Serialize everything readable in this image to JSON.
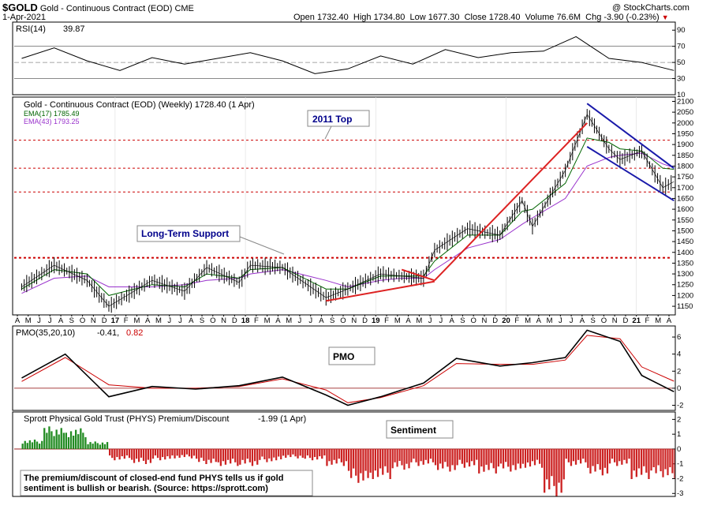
{
  "header": {
    "symbol": "$GOLD",
    "name": "Gold - Continuous Contract (EOD)",
    "exchange": "CME",
    "date": "1-Apr-2021",
    "copyright": "@ StockCharts.com",
    "open_label": "Open",
    "open": "1732.40",
    "high_label": "High",
    "high": "1734.80",
    "low_label": "Low",
    "low": "1677.30",
    "close_label": "Close",
    "close": "1728.40",
    "volume_label": "Volume",
    "volume": "76.6M",
    "chg_label": "Chg",
    "chg": "-3.90 (-0.23%)"
  },
  "rsi_panel": {
    "label": "RSI(14)",
    "value": "39.87",
    "ticks": [
      "90",
      "70",
      "50",
      "30",
      "10"
    ],
    "line_color": "#000000"
  },
  "price_panel": {
    "title": "Gold - Continuous Contract (EOD) (Weekly) 1728.40 (1 Apr)",
    "ema17_label": "EMA(17) 1785.49",
    "ema43_label": "EMA(43) 1793.25",
    "ema17_color": "#006400",
    "ema43_color": "#9932cc",
    "ticks": [
      "2100",
      "2050",
      "2000",
      "1950",
      "1900",
      "1850",
      "1800",
      "1750",
      "1700",
      "1650",
      "1600",
      "1550",
      "1500",
      "1450",
      "1400",
      "1350",
      "1300",
      "1250",
      "1200",
      "1150"
    ],
    "annotations": {
      "top_2011": "2011 Top",
      "support": "Long-Term Support"
    },
    "levels": [
      1920,
      1790,
      1680,
      1375
    ]
  },
  "x_axis": {
    "labels": [
      "A",
      "M",
      "J",
      "J",
      "A",
      "S",
      "O",
      "N",
      "D",
      "17",
      "F",
      "M",
      "A",
      "M",
      "J",
      "J",
      "A",
      "S",
      "O",
      "N",
      "D",
      "18",
      "F",
      "M",
      "A",
      "M",
      "J",
      "J",
      "A",
      "S",
      "O",
      "N",
      "D",
      "19",
      "F",
      "M",
      "A",
      "M",
      "J",
      "J",
      "A",
      "S",
      "O",
      "N",
      "D",
      "20",
      "F",
      "M",
      "A",
      "M",
      "J",
      "J",
      "A",
      "S",
      "O",
      "N",
      "D",
      "21",
      "F",
      "M",
      "A"
    ],
    "year_labels": [
      "17",
      "18",
      "19",
      "20",
      "21"
    ]
  },
  "pmo_panel": {
    "label": "PMO(35,20,10)",
    "value": "-0.41,",
    "signal_value": "0.82",
    "box_label": "PMO",
    "ticks": [
      "6",
      "4",
      "2",
      "0",
      "-2"
    ]
  },
  "sentiment_panel": {
    "label": "Sprott Physical Gold Trust (PHYS) Premium/Discount",
    "value": "-1.99 (1 Apr)",
    "box_label": "Sentiment",
    "note_line1": "The premium/discount of closed-end fund PHYS tells us if gold",
    "note_line2": "sentiment is bullish or bearish. (Source: https://sprott.com)",
    "ticks": [
      "2",
      "1",
      "0",
      "-1",
      "-2",
      "-3"
    ],
    "positive_color": "#228b22",
    "negative_color": "#cc2222"
  },
  "chart_data": [
    {
      "type": "line",
      "title": "RSI(14)",
      "x": [
        "2016-04",
        "2016-07",
        "2016-10",
        "2017-01",
        "2017-04",
        "2017-07",
        "2017-10",
        "2018-01",
        "2018-04",
        "2018-07",
        "2018-10",
        "2019-01",
        "2019-04",
        "2019-07",
        "2019-10",
        "2020-01",
        "2020-04",
        "2020-07",
        "2020-10",
        "2021-01",
        "2021-04"
      ],
      "series": [
        {
          "name": "RSI(14)",
          "values": [
            55,
            68,
            52,
            40,
            56,
            48,
            55,
            62,
            52,
            36,
            42,
            58,
            48,
            66,
            56,
            62,
            64,
            82,
            55,
            50,
            40
          ]
        }
      ],
      "ylim": [
        10,
        100
      ]
    },
    {
      "type": "line",
      "title": "Gold - Continuous Contract (EOD) (Weekly) 1728.40 (1 Apr)",
      "x": [
        "2016-04",
        "2016-07",
        "2016-10",
        "2016-12",
        "2017-04",
        "2017-07",
        "2017-09",
        "2017-12",
        "2018-01",
        "2018-04",
        "2018-08",
        "2018-10",
        "2019-01",
        "2019-03",
        "2019-05",
        "2019-06",
        "2019-09",
        "2019-12",
        "2020-02",
        "2020-03",
        "2020-06",
        "2020-08",
        "2020-10",
        "2020-11",
        "2021-01",
        "2021-03",
        "2021-04"
      ],
      "series": [
        {
          "name": "Gold",
          "values": [
            1240,
            1340,
            1270,
            1150,
            1270,
            1220,
            1330,
            1260,
            1340,
            1330,
            1190,
            1230,
            1300,
            1290,
            1280,
            1410,
            1510,
            1480,
            1640,
            1520,
            1780,
            2040,
            1880,
            1830,
            1870,
            1700,
            1728
          ]
        },
        {
          "name": "EMA(17)",
          "values": [
            1230,
            1320,
            1300,
            1200,
            1250,
            1240,
            1300,
            1280,
            1320,
            1330,
            1230,
            1230,
            1290,
            1290,
            1290,
            1360,
            1480,
            1480,
            1590,
            1600,
            1720,
            1930,
            1910,
            1880,
            1870,
            1790,
            1785
          ]
        },
        {
          "name": "EMA(43)",
          "values": [
            1210,
            1280,
            1290,
            1240,
            1240,
            1250,
            1270,
            1280,
            1300,
            1320,
            1270,
            1240,
            1270,
            1280,
            1280,
            1320,
            1420,
            1460,
            1530,
            1560,
            1650,
            1800,
            1840,
            1850,
            1860,
            1810,
            1793
          ]
        }
      ],
      "ylim": [
        1150,
        2100
      ]
    },
    {
      "type": "line",
      "title": "PMO(35,20,10)",
      "x": [
        "2016-04",
        "2016-08",
        "2016-12",
        "2017-04",
        "2017-08",
        "2017-12",
        "2018-04",
        "2018-08",
        "2018-10",
        "2019-01",
        "2019-05",
        "2019-08",
        "2019-12",
        "2020-03",
        "2020-06",
        "2020-08",
        "2020-11",
        "2021-01",
        "2021-04"
      ],
      "series": [
        {
          "name": "PMO",
          "values": [
            1.2,
            4.0,
            -1.0,
            0.2,
            -0.1,
            0.3,
            1.3,
            -0.8,
            -2.0,
            -1.0,
            0.6,
            3.5,
            2.6,
            3.0,
            3.6,
            6.8,
            5.5,
            1.5,
            -0.41
          ]
        },
        {
          "name": "Signal",
          "values": [
            0.8,
            3.6,
            0.4,
            0.0,
            0.0,
            0.2,
            1.1,
            -0.2,
            -1.7,
            -1.1,
            0.3,
            2.9,
            2.8,
            2.8,
            3.3,
            6.2,
            5.8,
            2.5,
            0.82
          ]
        }
      ],
      "ylim": [
        -2,
        7
      ]
    },
    {
      "type": "bar",
      "title": "Sprott Physical Gold Trust (PHYS) Premium/Discount -1.99 (1 Apr)",
      "categories": [
        "2016-04",
        "2016-06",
        "2016-08",
        "2016-10",
        "2016-12",
        "2017-02",
        "2017-04",
        "2017-06",
        "2017-08",
        "2017-10",
        "2017-12",
        "2018-02",
        "2018-04",
        "2018-06",
        "2018-08",
        "2018-10",
        "2018-12",
        "2019-02",
        "2019-04",
        "2019-06",
        "2019-08",
        "2019-10",
        "2019-12",
        "2020-02",
        "2020-04",
        "2020-06",
        "2020-08",
        "2020-10",
        "2020-12",
        "2021-02",
        "2021-04"
      ],
      "values": [
        0.5,
        1.2,
        1.1,
        0.4,
        -0.6,
        -0.8,
        -0.6,
        -0.5,
        -0.8,
        -0.9,
        -0.9,
        -0.7,
        -0.5,
        -0.6,
        -0.9,
        -1.8,
        -1.6,
        -1.1,
        -0.9,
        -1.2,
        -1.0,
        -1.3,
        -1.2,
        -1.0,
        -2.5,
        -0.9,
        -1.4,
        -0.9,
        -1.6,
        -1.5,
        -1.99
      ],
      "ylim": [
        -3,
        2
      ]
    }
  ]
}
